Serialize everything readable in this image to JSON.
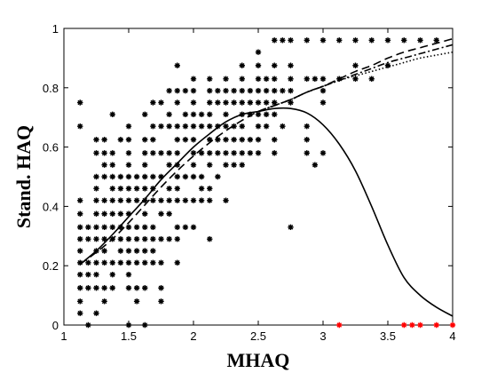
{
  "chart_data": {
    "type": "scatter",
    "xlabel": "MHAQ",
    "ylabel": "Stand. HAQ",
    "xlim": [
      1,
      4
    ],
    "ylim": [
      0,
      1
    ],
    "xticks": [
      "1",
      "1.5",
      "2",
      "2.5",
      "3",
      "3.5",
      "4"
    ],
    "yticks": [
      "0",
      "0.2",
      "0.4",
      "0.6",
      "0.8",
      "1"
    ],
    "grid": false,
    "legend": "none",
    "marker_color": "#000000",
    "highlight_color": "#ff0000",
    "scatter_points": [
      [
        1.125,
        0.75
      ],
      [
        1.125,
        0.67
      ],
      [
        1.125,
        0.42
      ],
      [
        1.125,
        0.375
      ],
      [
        1.125,
        0.33
      ],
      [
        1.125,
        0.29
      ],
      [
        1.125,
        0.25
      ],
      [
        1.125,
        0.21
      ],
      [
        1.125,
        0.17
      ],
      [
        1.125,
        0.125
      ],
      [
        1.125,
        0.08
      ],
      [
        1.125,
        0.04
      ],
      [
        1.1875,
        0.33
      ],
      [
        1.1875,
        0.29
      ],
      [
        1.1875,
        0.21
      ],
      [
        1.1875,
        0.17
      ],
      [
        1.1875,
        0.125
      ],
      [
        1.1875,
        0.0
      ],
      [
        1.25,
        0.625
      ],
      [
        1.25,
        0.58
      ],
      [
        1.25,
        0.5
      ],
      [
        1.25,
        0.46
      ],
      [
        1.25,
        0.42
      ],
      [
        1.25,
        0.375
      ],
      [
        1.25,
        0.33
      ],
      [
        1.25,
        0.29
      ],
      [
        1.25,
        0.25
      ],
      [
        1.25,
        0.21
      ],
      [
        1.25,
        0.17
      ],
      [
        1.25,
        0.125
      ],
      [
        1.25,
        0.04
      ],
      [
        1.3125,
        0.625
      ],
      [
        1.3125,
        0.58
      ],
      [
        1.3125,
        0.54
      ],
      [
        1.3125,
        0.5
      ],
      [
        1.3125,
        0.42
      ],
      [
        1.3125,
        0.375
      ],
      [
        1.3125,
        0.33
      ],
      [
        1.3125,
        0.29
      ],
      [
        1.3125,
        0.25
      ],
      [
        1.3125,
        0.21
      ],
      [
        1.3125,
        0.125
      ],
      [
        1.3125,
        0.08
      ],
      [
        1.375,
        0.71
      ],
      [
        1.375,
        0.58
      ],
      [
        1.375,
        0.54
      ],
      [
        1.375,
        0.5
      ],
      [
        1.375,
        0.46
      ],
      [
        1.375,
        0.42
      ],
      [
        1.375,
        0.375
      ],
      [
        1.375,
        0.33
      ],
      [
        1.375,
        0.29
      ],
      [
        1.375,
        0.21
      ],
      [
        1.375,
        0.17
      ],
      [
        1.375,
        0.125
      ],
      [
        1.4375,
        0.625
      ],
      [
        1.4375,
        0.5
      ],
      [
        1.4375,
        0.46
      ],
      [
        1.4375,
        0.42
      ],
      [
        1.4375,
        0.375
      ],
      [
        1.4375,
        0.33
      ],
      [
        1.4375,
        0.29
      ],
      [
        1.4375,
        0.25
      ],
      [
        1.4375,
        0.21
      ],
      [
        1.5,
        0.67
      ],
      [
        1.5,
        0.625
      ],
      [
        1.5,
        0.58
      ],
      [
        1.5,
        0.54
      ],
      [
        1.5,
        0.5
      ],
      [
        1.5,
        0.46
      ],
      [
        1.5,
        0.42
      ],
      [
        1.5,
        0.375
      ],
      [
        1.5,
        0.33
      ],
      [
        1.5,
        0.29
      ],
      [
        1.5,
        0.25
      ],
      [
        1.5,
        0.21
      ],
      [
        1.5,
        0.17
      ],
      [
        1.5,
        0.125
      ],
      [
        1.5,
        0.0
      ],
      [
        1.5625,
        0.5
      ],
      [
        1.5625,
        0.46
      ],
      [
        1.5625,
        0.42
      ],
      [
        1.5625,
        0.33
      ],
      [
        1.5625,
        0.29
      ],
      [
        1.5625,
        0.25
      ],
      [
        1.5625,
        0.21
      ],
      [
        1.5625,
        0.125
      ],
      [
        1.5625,
        0.08
      ],
      [
        1.625,
        0.71
      ],
      [
        1.625,
        0.625
      ],
      [
        1.625,
        0.58
      ],
      [
        1.625,
        0.54
      ],
      [
        1.625,
        0.5
      ],
      [
        1.625,
        0.46
      ],
      [
        1.625,
        0.42
      ],
      [
        1.625,
        0.375
      ],
      [
        1.625,
        0.33
      ],
      [
        1.625,
        0.29
      ],
      [
        1.625,
        0.25
      ],
      [
        1.625,
        0.21
      ],
      [
        1.625,
        0.125
      ],
      [
        1.625,
        0.0
      ],
      [
        1.6875,
        0.75
      ],
      [
        1.6875,
        0.67
      ],
      [
        1.6875,
        0.625
      ],
      [
        1.6875,
        0.58
      ],
      [
        1.6875,
        0.5
      ],
      [
        1.6875,
        0.46
      ],
      [
        1.6875,
        0.42
      ],
      [
        1.6875,
        0.33
      ],
      [
        1.6875,
        0.29
      ],
      [
        1.6875,
        0.25
      ],
      [
        1.6875,
        0.21
      ],
      [
        1.75,
        0.75
      ],
      [
        1.75,
        0.67
      ],
      [
        1.75,
        0.58
      ],
      [
        1.75,
        0.5
      ],
      [
        1.75,
        0.42
      ],
      [
        1.75,
        0.375
      ],
      [
        1.75,
        0.29
      ],
      [
        1.75,
        0.21
      ],
      [
        1.75,
        0.125
      ],
      [
        1.75,
        0.08
      ],
      [
        1.8125,
        0.79
      ],
      [
        1.8125,
        0.71
      ],
      [
        1.8125,
        0.67
      ],
      [
        1.8125,
        0.58
      ],
      [
        1.8125,
        0.54
      ],
      [
        1.8125,
        0.46
      ],
      [
        1.8125,
        0.42
      ],
      [
        1.8125,
        0.375
      ],
      [
        1.8125,
        0.29
      ],
      [
        1.875,
        0.875
      ],
      [
        1.875,
        0.79
      ],
      [
        1.875,
        0.75
      ],
      [
        1.875,
        0.67
      ],
      [
        1.875,
        0.625
      ],
      [
        1.875,
        0.58
      ],
      [
        1.875,
        0.54
      ],
      [
        1.875,
        0.5
      ],
      [
        1.875,
        0.46
      ],
      [
        1.875,
        0.42
      ],
      [
        1.875,
        0.33
      ],
      [
        1.875,
        0.29
      ],
      [
        1.875,
        0.21
      ],
      [
        1.9375,
        0.79
      ],
      [
        1.9375,
        0.71
      ],
      [
        1.9375,
        0.67
      ],
      [
        1.9375,
        0.625
      ],
      [
        1.9375,
        0.5
      ],
      [
        1.9375,
        0.42
      ],
      [
        1.9375,
        0.33
      ],
      [
        2.0,
        0.83
      ],
      [
        2.0,
        0.79
      ],
      [
        2.0,
        0.75
      ],
      [
        2.0,
        0.71
      ],
      [
        2.0,
        0.67
      ],
      [
        2.0,
        0.625
      ],
      [
        2.0,
        0.58
      ],
      [
        2.0,
        0.54
      ],
      [
        2.0,
        0.5
      ],
      [
        2.0,
        0.42
      ],
      [
        2.0,
        0.33
      ],
      [
        2.0625,
        0.71
      ],
      [
        2.0625,
        0.67
      ],
      [
        2.0625,
        0.58
      ],
      [
        2.0625,
        0.5
      ],
      [
        2.0625,
        0.46
      ],
      [
        2.0625,
        0.42
      ],
      [
        2.125,
        0.83
      ],
      [
        2.125,
        0.79
      ],
      [
        2.125,
        0.75
      ],
      [
        2.125,
        0.71
      ],
      [
        2.125,
        0.67
      ],
      [
        2.125,
        0.625
      ],
      [
        2.125,
        0.58
      ],
      [
        2.125,
        0.54
      ],
      [
        2.125,
        0.46
      ],
      [
        2.125,
        0.42
      ],
      [
        2.125,
        0.29
      ],
      [
        2.1875,
        0.79
      ],
      [
        2.1875,
        0.75
      ],
      [
        2.1875,
        0.67
      ],
      [
        2.1875,
        0.625
      ],
      [
        2.1875,
        0.58
      ],
      [
        2.1875,
        0.5
      ],
      [
        2.25,
        0.83
      ],
      [
        2.25,
        0.79
      ],
      [
        2.25,
        0.75
      ],
      [
        2.25,
        0.71
      ],
      [
        2.25,
        0.67
      ],
      [
        2.25,
        0.625
      ],
      [
        2.25,
        0.58
      ],
      [
        2.25,
        0.54
      ],
      [
        2.25,
        0.42
      ],
      [
        2.3125,
        0.79
      ],
      [
        2.3125,
        0.75
      ],
      [
        2.3125,
        0.67
      ],
      [
        2.3125,
        0.625
      ],
      [
        2.3125,
        0.58
      ],
      [
        2.3125,
        0.54
      ],
      [
        2.375,
        0.875
      ],
      [
        2.375,
        0.83
      ],
      [
        2.375,
        0.79
      ],
      [
        2.375,
        0.75
      ],
      [
        2.375,
        0.71
      ],
      [
        2.375,
        0.67
      ],
      [
        2.375,
        0.625
      ],
      [
        2.375,
        0.58
      ],
      [
        2.375,
        0.54
      ],
      [
        2.4375,
        0.79
      ],
      [
        2.4375,
        0.75
      ],
      [
        2.4375,
        0.71
      ],
      [
        2.4375,
        0.625
      ],
      [
        2.4375,
        0.58
      ],
      [
        2.5,
        0.92
      ],
      [
        2.5,
        0.875
      ],
      [
        2.5,
        0.83
      ],
      [
        2.5,
        0.79
      ],
      [
        2.5,
        0.75
      ],
      [
        2.5,
        0.71
      ],
      [
        2.5,
        0.67
      ],
      [
        2.5,
        0.625
      ],
      [
        2.5,
        0.58
      ],
      [
        2.5625,
        0.83
      ],
      [
        2.5625,
        0.79
      ],
      [
        2.5625,
        0.75
      ],
      [
        2.5625,
        0.71
      ],
      [
        2.5625,
        0.67
      ],
      [
        2.625,
        0.96
      ],
      [
        2.625,
        0.875
      ],
      [
        2.625,
        0.83
      ],
      [
        2.625,
        0.79
      ],
      [
        2.625,
        0.75
      ],
      [
        2.625,
        0.71
      ],
      [
        2.625,
        0.625
      ],
      [
        2.625,
        0.58
      ],
      [
        2.6875,
        0.96
      ],
      [
        2.6875,
        0.79
      ],
      [
        2.6875,
        0.67
      ],
      [
        2.75,
        0.96
      ],
      [
        2.75,
        0.875
      ],
      [
        2.75,
        0.83
      ],
      [
        2.75,
        0.79
      ],
      [
        2.75,
        0.75
      ],
      [
        2.75,
        0.33
      ],
      [
        2.875,
        0.96
      ],
      [
        2.875,
        0.83
      ],
      [
        2.875,
        0.67
      ],
      [
        2.875,
        0.625
      ],
      [
        2.875,
        0.58
      ],
      [
        2.9375,
        0.83
      ],
      [
        2.9375,
        0.54
      ],
      [
        3.0,
        0.96
      ],
      [
        3.0,
        0.83
      ],
      [
        3.0,
        0.79
      ],
      [
        3.0,
        0.75
      ],
      [
        3.0,
        0.58
      ],
      [
        3.125,
        0.96
      ],
      [
        3.125,
        0.83
      ],
      [
        3.25,
        0.96
      ],
      [
        3.25,
        0.875
      ],
      [
        3.25,
        0.83
      ],
      [
        3.375,
        0.96
      ],
      [
        3.375,
        0.83
      ],
      [
        3.5,
        0.96
      ],
      [
        3.5,
        0.875
      ],
      [
        3.625,
        0.96
      ],
      [
        3.75,
        0.96
      ],
      [
        3.875,
        0.96
      ]
    ],
    "highlight_points": [
      [
        3.125,
        0
      ],
      [
        3.625,
        0
      ],
      [
        3.6875,
        0
      ],
      [
        3.75,
        0
      ],
      [
        3.875,
        0
      ],
      [
        4.0,
        0
      ]
    ],
    "series": [
      {
        "style": "solid",
        "x": [
          1.125,
          1.25,
          1.375,
          1.5,
          1.625,
          1.75,
          1.875,
          2.0,
          2.125,
          2.25,
          2.375,
          2.5,
          2.625,
          2.75,
          2.875,
          3.0,
          3.125,
          3.25,
          3.375,
          3.5,
          3.625,
          3.75,
          3.875,
          4.0
        ],
        "y": [
          0.205,
          0.25,
          0.305,
          0.365,
          0.425,
          0.49,
          0.545,
          0.6,
          0.645,
          0.685,
          0.71,
          0.72,
          0.73,
          0.73,
          0.715,
          0.675,
          0.61,
          0.52,
          0.4,
          0.27,
          0.16,
          0.1,
          0.06,
          0.03
        ]
      },
      {
        "style": "dashed",
        "x": [
          1.125,
          1.25,
          1.375,
          1.5,
          1.625,
          1.75,
          1.875,
          2.0,
          2.125,
          2.25,
          2.375,
          2.5,
          2.625,
          2.75,
          2.875,
          3.0,
          3.125,
          3.25,
          3.375,
          3.5,
          3.625,
          3.75,
          3.875,
          4.0
        ],
        "y": [
          0.205,
          0.245,
          0.29,
          0.345,
          0.405,
          0.465,
          0.52,
          0.57,
          0.615,
          0.655,
          0.69,
          0.72,
          0.74,
          0.76,
          0.785,
          0.805,
          0.83,
          0.855,
          0.875,
          0.9,
          0.92,
          0.935,
          0.95,
          0.965
        ]
      },
      {
        "style": "dashdot",
        "x": [
          2.5,
          2.625,
          2.75,
          2.875,
          3.0,
          3.125,
          3.25,
          3.375,
          3.5,
          3.625,
          3.75,
          3.875,
          4.0
        ],
        "y": [
          0.72,
          0.74,
          0.76,
          0.785,
          0.805,
          0.825,
          0.845,
          0.865,
          0.885,
          0.9,
          0.915,
          0.93,
          0.945
        ]
      },
      {
        "style": "dotted",
        "x": [
          2.5,
          2.625,
          2.75,
          2.875,
          3.0,
          3.125,
          3.25,
          3.375,
          3.5,
          3.625,
          3.75,
          3.875,
          4.0
        ],
        "y": [
          0.72,
          0.74,
          0.76,
          0.785,
          0.805,
          0.825,
          0.84,
          0.855,
          0.87,
          0.885,
          0.9,
          0.91,
          0.92
        ]
      }
    ]
  }
}
